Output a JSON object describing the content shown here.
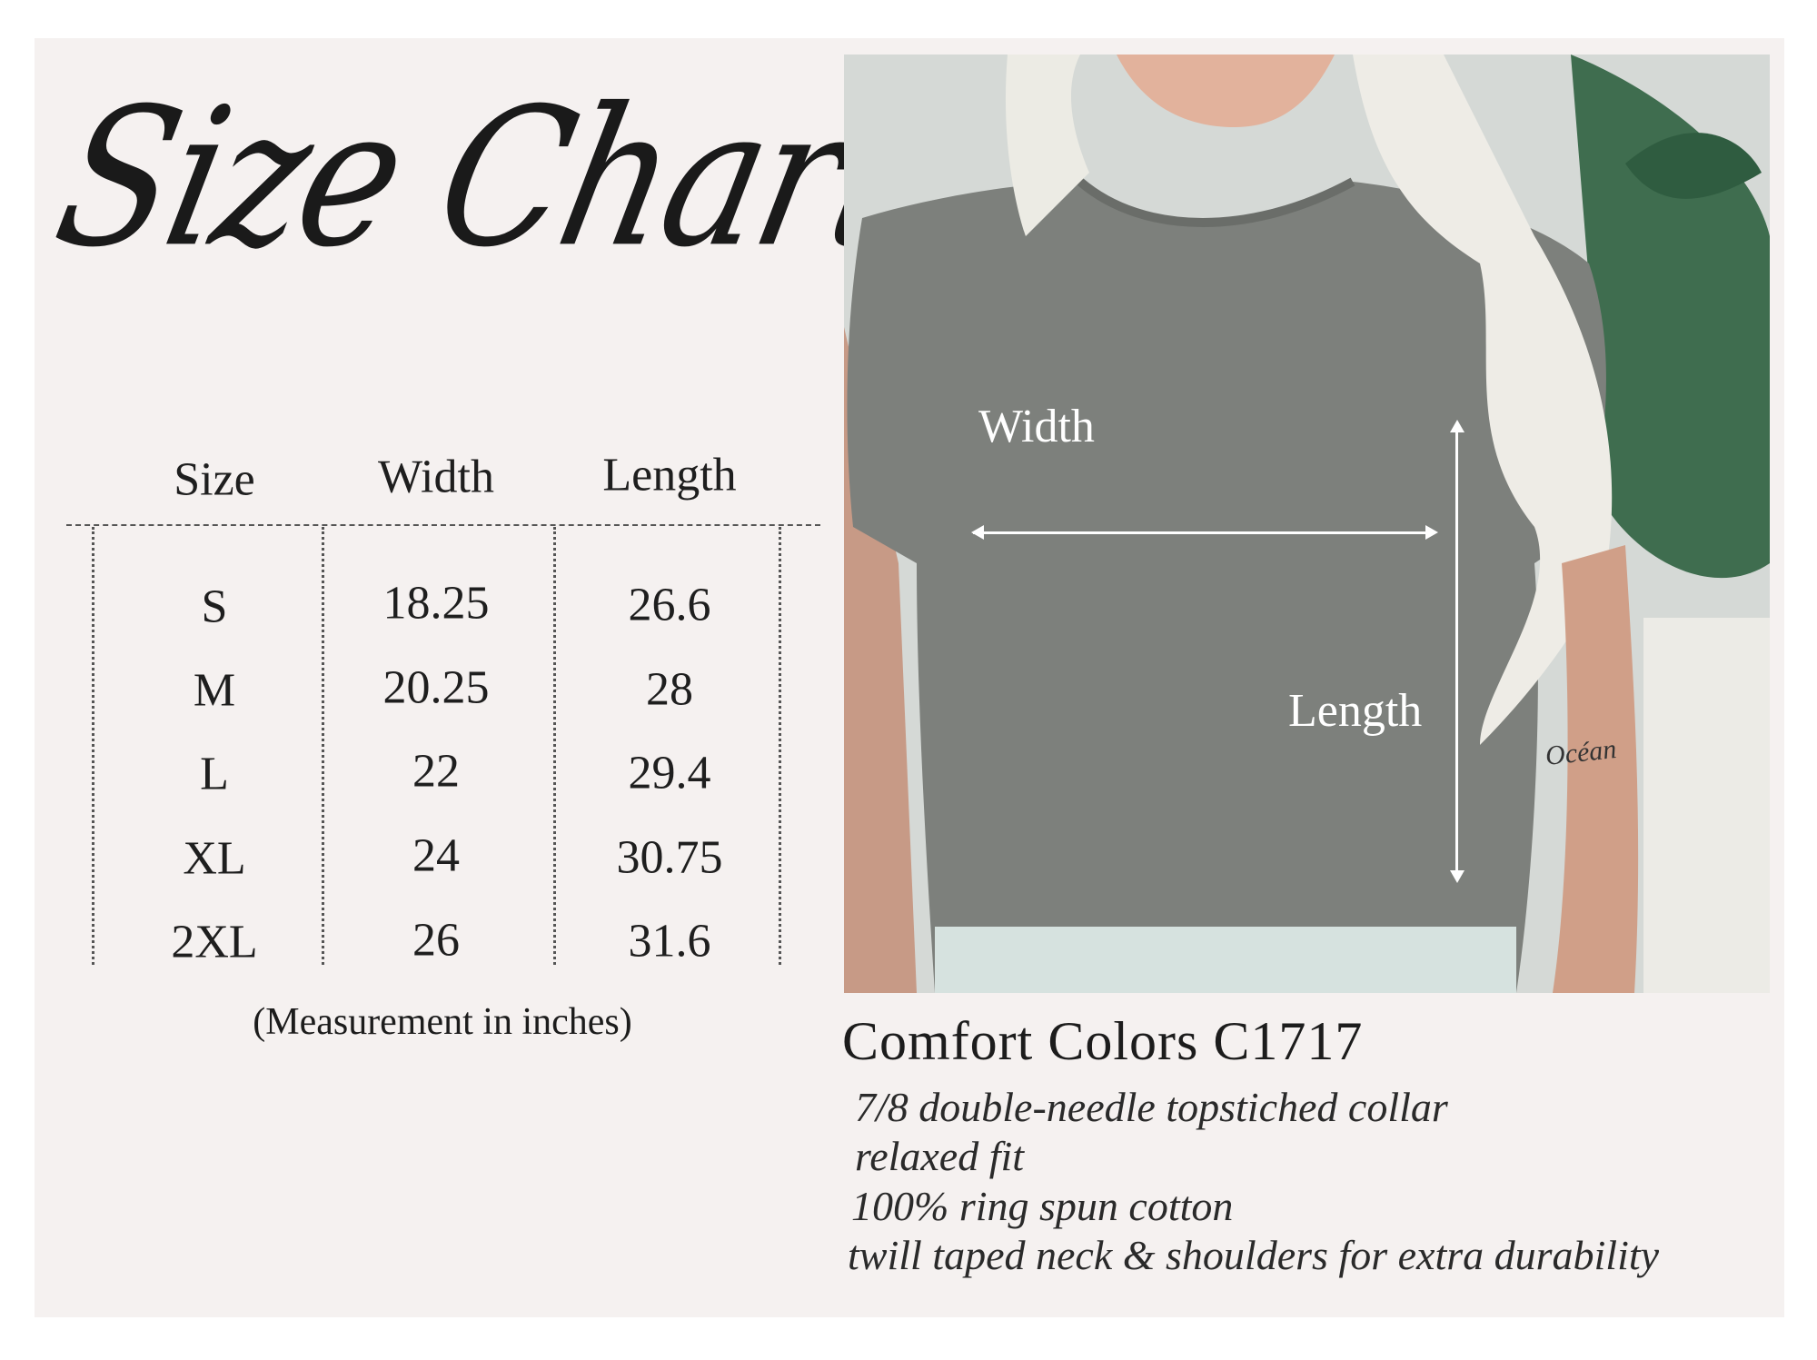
{
  "title": "Size Chart",
  "table": {
    "headers": [
      "Size",
      "Width",
      "Length"
    ],
    "rows": [
      [
        "S",
        "18.25",
        "26.6"
      ],
      [
        "M",
        "20.25",
        "28"
      ],
      [
        "L",
        "22",
        "29.4"
      ],
      [
        "XL",
        "24",
        "30.75"
      ],
      [
        "2XL",
        "26",
        "31.6"
      ]
    ],
    "note": "(Measurement in inches)"
  },
  "photo": {
    "width_label": "Width",
    "length_label": "Length",
    "tattoo_text": "Océan"
  },
  "product": {
    "name": "Comfort Colors C1717",
    "features": [
      "7/8 double-needle topstiched collar",
      "relaxed fit",
      "100% ring spun cotton",
      "twill taped neck & shoulders for extra durability"
    ]
  },
  "colors": {
    "background": "#f5f1f0",
    "text": "#1c1c1c",
    "shirt": "#7d807c"
  }
}
